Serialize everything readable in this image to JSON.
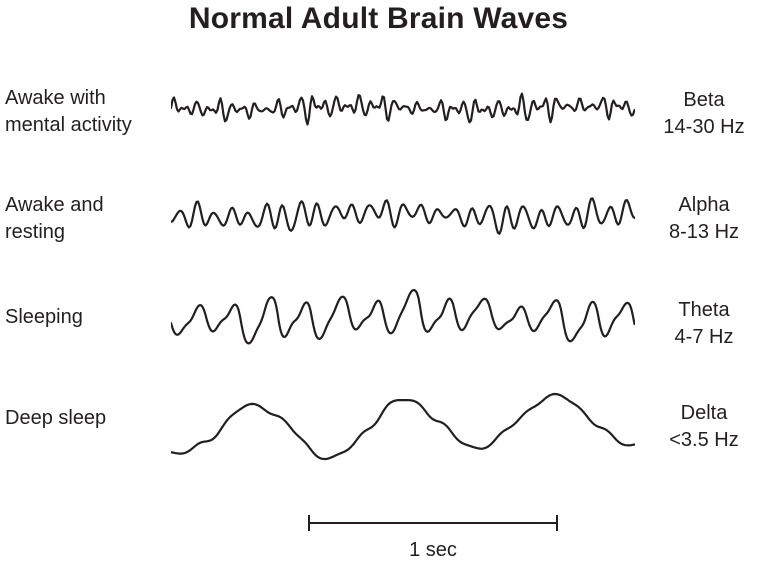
{
  "title": "Normal Adult Brain Waves",
  "colors": {
    "ink": "#231f20",
    "background": "#ffffff"
  },
  "rows": [
    {
      "state_line1": "Awake with",
      "state_line2": "mental activity",
      "wave_name": "Beta",
      "freq_label": "14-30 Hz",
      "wave": {
        "seed": 7,
        "components": [
          {
            "f": 40,
            "a": 6
          },
          {
            "f": 57,
            "a": 2.5
          },
          {
            "f": 23,
            "a": 3
          },
          {
            "f": 71,
            "a": 1.5
          }
        ],
        "mod": {
          "f": 6,
          "depth": 0.5
        },
        "wander": {
          "f": 2,
          "a": 2
        },
        "clip": 0,
        "skew": 1
      }
    },
    {
      "state_line1": "Awake and",
      "state_line2": "resting",
      "wave_name": "Alpha",
      "freq_label": "8-13 Hz",
      "wave": {
        "seed": 3,
        "components": [
          {
            "f": 27,
            "a": 9
          },
          {
            "f": 39,
            "a": 2
          },
          {
            "f": 13,
            "a": 3
          }
        ],
        "mod": {
          "f": 4.5,
          "depth": 0.45
        },
        "wander": {
          "f": 1.7,
          "a": 3
        },
        "clip": 0,
        "skew": 1
      }
    },
    {
      "state_line1": "Sleeping",
      "state_line2": "",
      "wave_name": "Theta",
      "freq_label": "4-7 Hz",
      "wave": {
        "seed": 11,
        "components": [
          {
            "f": 13,
            "a": 16
          },
          {
            "f": 26,
            "a": 5
          },
          {
            "f": 7,
            "a": 5
          }
        ],
        "mod": {
          "f": 3,
          "depth": 0.35
        },
        "wander": {
          "f": 1.3,
          "a": 4
        },
        "clip": 30,
        "skew": 1.2
      }
    },
    {
      "state_line1": "Deep sleep",
      "state_line2": "",
      "wave_name": "Delta",
      "freq_label": "<3.5 Hz",
      "wave": {
        "seed": 5,
        "components": [
          {
            "f": 3.1,
            "a": 30
          },
          {
            "f": 9,
            "a": 4
          },
          {
            "f": 17,
            "a": 2
          }
        ],
        "mod": {
          "f": 1.5,
          "depth": 0.15
        },
        "wander": {
          "f": 0.7,
          "a": 6
        },
        "clip": 36,
        "skew": 1
      }
    }
  ],
  "scale_bar": {
    "label": "1 sec"
  }
}
